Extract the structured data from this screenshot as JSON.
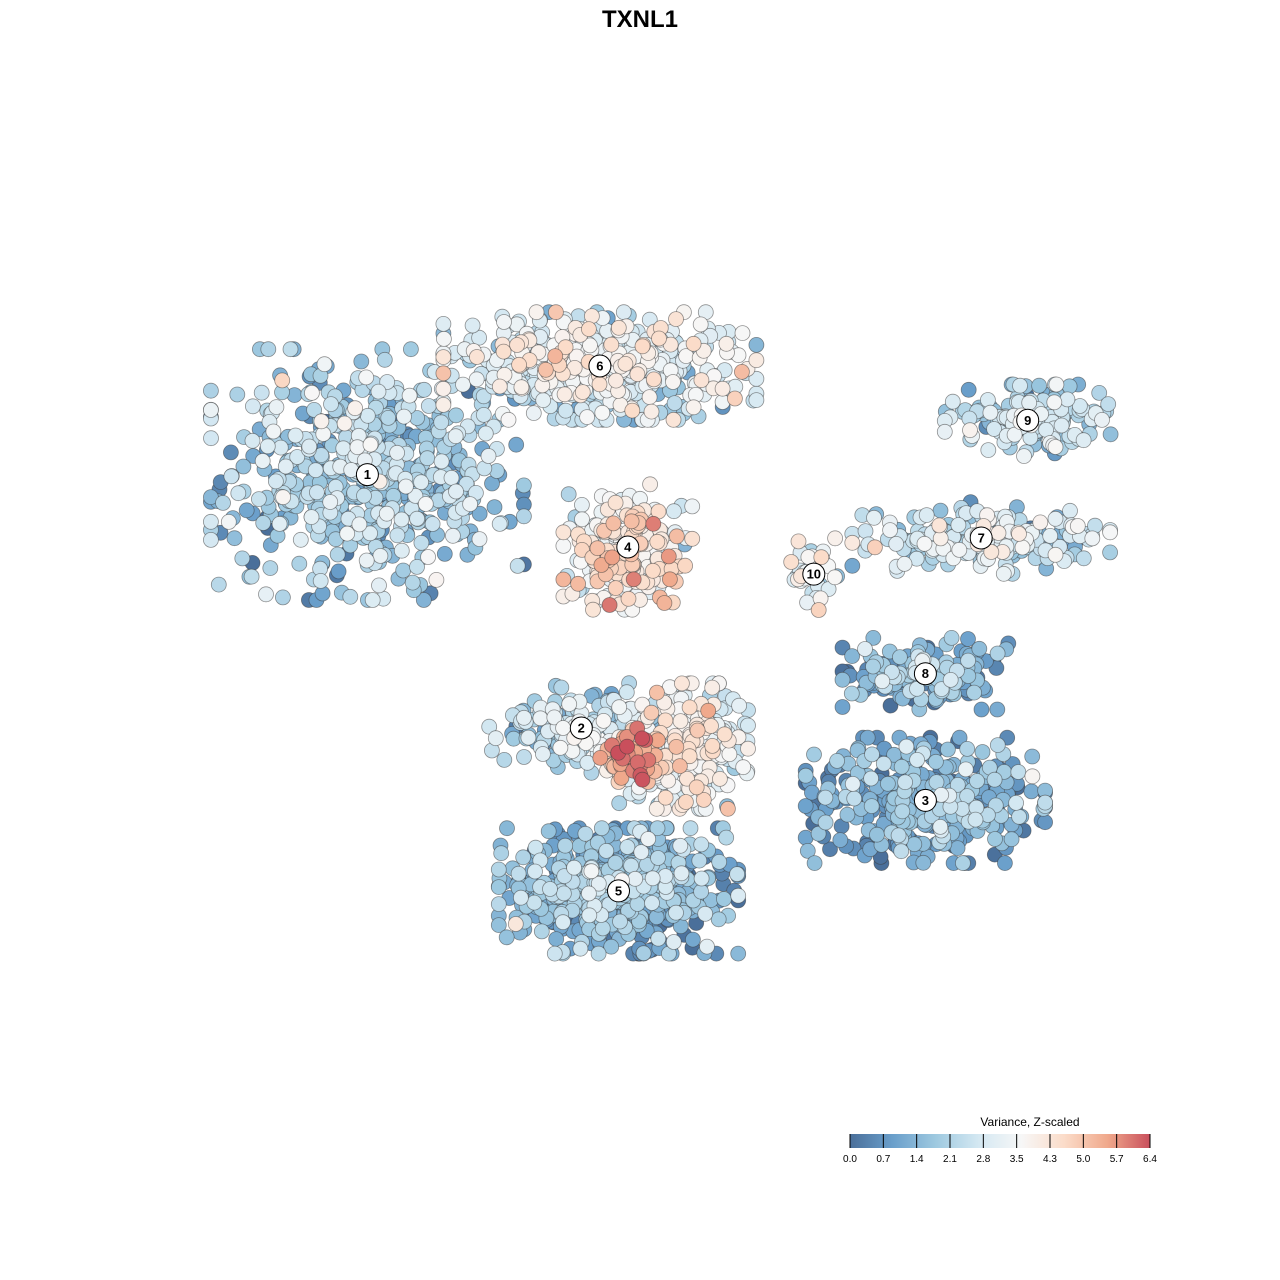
{
  "chart_data": {
    "type": "scatter",
    "title": "TXNL1",
    "xlabel": "",
    "ylabel": "",
    "grid": false,
    "axes_visible": false,
    "color_scale": {
      "title": "Variance, Z-scaled",
      "range": [
        0.0,
        6.4
      ],
      "ticks": [
        "0.0",
        "0.7",
        "1.4",
        "2.1",
        "2.8",
        "3.5",
        "4.3",
        "5.0",
        "5.7",
        "6.4"
      ],
      "colors": [
        "#4a6f9a",
        "#6a9fcb",
        "#9ec9e0",
        "#d4e8f2",
        "#f7f7f7",
        "#fbdcc9",
        "#f0a98c",
        "#c94f5c"
      ],
      "placement": "bottom-right"
    },
    "clusters": [
      {
        "label": "1",
        "x": 0.18,
        "y": 0.68,
        "spread": [
          0.17,
          0.14
        ],
        "count": 620,
        "mean_value": 1.9
      },
      {
        "label": "2",
        "x": 0.41,
        "y": 0.4,
        "spread": [
          0.1,
          0.05
        ],
        "count": 160,
        "mean_value": 2.4
      },
      {
        "label": "3",
        "x": 0.78,
        "y": 0.32,
        "spread": [
          0.13,
          0.07
        ],
        "count": 420,
        "mean_value": 1.2
      },
      {
        "label": "4",
        "x": 0.46,
        "y": 0.6,
        "spread": [
          0.07,
          0.07
        ],
        "count": 260,
        "mean_value": 3.7
      },
      {
        "label": "5",
        "x": 0.45,
        "y": 0.22,
        "spread": [
          0.13,
          0.07
        ],
        "count": 650,
        "mean_value": 1.3
      },
      {
        "label": "6",
        "x": 0.43,
        "y": 0.8,
        "spread": [
          0.17,
          0.06
        ],
        "count": 520,
        "mean_value": 2.9
      },
      {
        "label": "7",
        "x": 0.84,
        "y": 0.61,
        "spread": [
          0.14,
          0.04
        ],
        "count": 210,
        "mean_value": 2.6
      },
      {
        "label": "8",
        "x": 0.78,
        "y": 0.46,
        "spread": [
          0.09,
          0.04
        ],
        "count": 170,
        "mean_value": 1.3
      },
      {
        "label": "9",
        "x": 0.89,
        "y": 0.74,
        "spread": [
          0.09,
          0.04
        ],
        "count": 160,
        "mean_value": 2.3
      },
      {
        "label": "10",
        "x": 0.66,
        "y": 0.57,
        "spread": [
          0.03,
          0.04
        ],
        "count": 40,
        "mean_value": 3.1
      },
      {
        "label": "",
        "x": 0.52,
        "y": 0.38,
        "spread": [
          0.07,
          0.07
        ],
        "count": 320,
        "mean_value": 3.3
      },
      {
        "label": "",
        "x": 0.46,
        "y": 0.37,
        "spread": [
          0.03,
          0.03
        ],
        "count": 70,
        "mean_value": 5.2
      }
    ]
  }
}
